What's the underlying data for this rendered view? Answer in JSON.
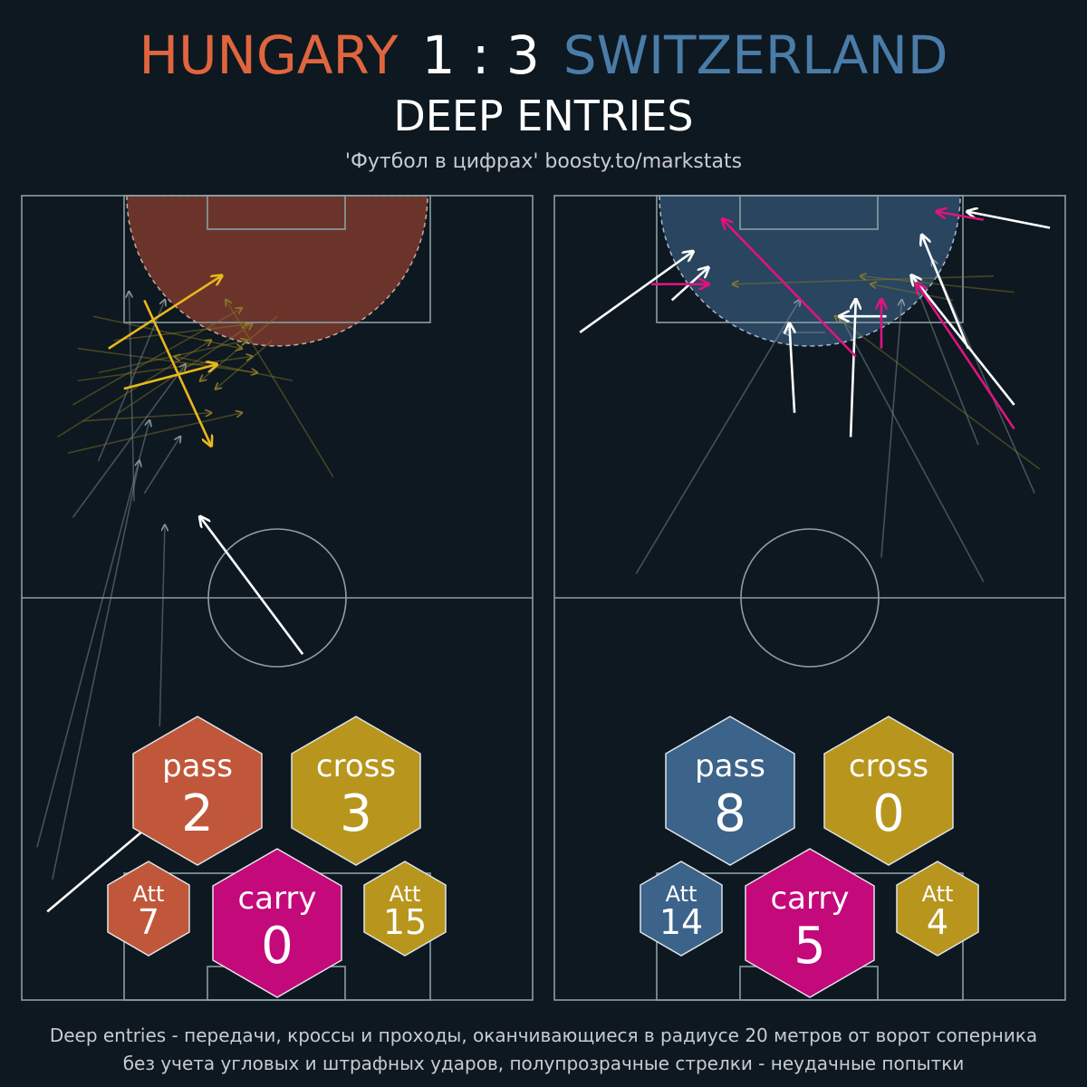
{
  "header": {
    "home_team": "HUNGARY",
    "score": "1 : 3",
    "away_team": "SWITZERLAND",
    "title": "DEEP ENTRIES",
    "credit": "'Футбол в цифрах' boosty.to/markstats"
  },
  "colors": {
    "home": "#c0573b",
    "away": "#3c6389",
    "cross": "#b8961d",
    "carry": "#c4097a",
    "home_zone": "#7a3a2e",
    "away_zone": "#2c4a67",
    "success_pass": "#ffffff",
    "success_cross": "#e8b81c",
    "success_carry": "#e0137f",
    "fail": "#8a98a0"
  },
  "footer": {
    "line1": "Deep entries - передачи, кроссы и проходы, оканчивающиеся в радиусе 20 метров от ворот соперника",
    "line2": "без учета угловых и штрафных ударов, полупрозрачные стрелки - неудачные попытки"
  },
  "chart_data": [
    {
      "type": "pitch-map",
      "team": "HUNGARY",
      "stats": {
        "pass_label": "pass",
        "pass": "2",
        "cross_label": "cross",
        "cross": "3",
        "carry_label": "carry",
        "carry": "0",
        "pass_att_label": "Att",
        "pass_att": "7",
        "cross_att_label": "Att",
        "cross_att": "15"
      },
      "arrows": [
        {
          "kind": "pass",
          "ok": true,
          "from": [
            5,
            11
          ],
          "to": [
            33,
            26
          ]
        },
        {
          "kind": "pass",
          "ok": true,
          "from": [
            55,
            43
          ],
          "to": [
            35,
            60
          ]
        },
        {
          "kind": "cross",
          "ok": true,
          "from": [
            24,
            87
          ],
          "to": [
            37,
            69
          ]
        },
        {
          "kind": "cross",
          "ok": true,
          "from": [
            20,
            76
          ],
          "to": [
            38,
            79
          ]
        },
        {
          "kind": "cross",
          "ok": true,
          "from": [
            17,
            81
          ],
          "to": [
            39,
            90
          ]
        },
        {
          "kind": "pass",
          "ok": false,
          "from": [
            6,
            15
          ],
          "to": [
            23,
            67
          ]
        },
        {
          "kind": "pass",
          "ok": false,
          "from": [
            3,
            19
          ],
          "to": [
            25,
            72
          ]
        },
        {
          "kind": "pass",
          "ok": false,
          "from": [
            27,
            34
          ],
          "to": [
            28,
            59
          ]
        },
        {
          "kind": "pass",
          "ok": false,
          "from": [
            24,
            63
          ],
          "to": [
            31,
            70
          ]
        },
        {
          "kind": "pass",
          "ok": false,
          "from": [
            10,
            60
          ],
          "to": [
            32,
            79
          ]
        },
        {
          "kind": "pass",
          "ok": false,
          "from": [
            22,
            62
          ],
          "to": [
            21,
            88
          ]
        },
        {
          "kind": "pass",
          "ok": false,
          "from": [
            15,
            67
          ],
          "to": [
            28,
            87
          ]
        },
        {
          "kind": "cross",
          "ok": false,
          "from": [
            7,
            70
          ],
          "to": [
            37,
            82
          ]
        },
        {
          "kind": "cross",
          "ok": false,
          "from": [
            9,
            68
          ],
          "to": [
            43,
            73
          ]
        },
        {
          "kind": "cross",
          "ok": false,
          "from": [
            12,
            72
          ],
          "to": [
            37,
            73
          ]
        },
        {
          "kind": "cross",
          "ok": false,
          "from": [
            15,
            78
          ],
          "to": [
            44,
            82
          ]
        },
        {
          "kind": "cross",
          "ok": false,
          "from": [
            14,
            85
          ],
          "to": [
            43,
            81
          ]
        },
        {
          "kind": "cross",
          "ok": false,
          "from": [
            18,
            82
          ],
          "to": [
            44,
            84
          ]
        },
        {
          "kind": "cross",
          "ok": false,
          "from": [
            11,
            77
          ],
          "to": [
            45,
            80
          ]
        },
        {
          "kind": "cross",
          "ok": false,
          "from": [
            11,
            81
          ],
          "to": [
            46,
            78
          ]
        },
        {
          "kind": "cross",
          "ok": false,
          "from": [
            10,
            74
          ],
          "to": [
            43,
            86
          ]
        },
        {
          "kind": "cross",
          "ok": false,
          "from": [
            19,
            73
          ],
          "to": [
            45,
            84
          ]
        },
        {
          "kind": "cross",
          "ok": false,
          "from": [
            50,
            85
          ],
          "to": [
            35,
            77
          ]
        },
        {
          "kind": "cross",
          "ok": false,
          "from": [
            53,
            77
          ],
          "to": [
            30,
            80
          ]
        },
        {
          "kind": "cross",
          "ok": false,
          "from": [
            61,
            65
          ],
          "to": [
            40,
            87
          ]
        },
        {
          "kind": "cross",
          "ok": false,
          "from": [
            49,
            82
          ],
          "to": [
            38,
            76
          ]
        }
      ]
    },
    {
      "type": "pitch-map",
      "team": "SWITZERLAND",
      "stats": {
        "pass_label": "pass",
        "pass": "8",
        "cross_label": "cross",
        "cross": "0",
        "carry_label": "carry",
        "carry": "5",
        "pass_att_label": "Att",
        "pass_att": "14",
        "cross_att_label": "Att",
        "cross_att": "4"
      },
      "arrows": [
        {
          "kind": "pass",
          "ok": true,
          "from": [
            5,
            83
          ],
          "to": [
            27,
            93
          ]
        },
        {
          "kind": "pass",
          "ok": true,
          "from": [
            23,
            87
          ],
          "to": [
            30,
            91
          ]
        },
        {
          "kind": "pass",
          "ok": true,
          "from": [
            47,
            73
          ],
          "to": [
            46,
            84
          ]
        },
        {
          "kind": "pass",
          "ok": true,
          "from": [
            58,
            70
          ],
          "to": [
            59,
            87
          ]
        },
        {
          "kind": "pass",
          "ok": true,
          "from": [
            65,
            85
          ],
          "to": [
            56,
            85
          ]
        },
        {
          "kind": "pass",
          "ok": true,
          "from": [
            81,
            81
          ],
          "to": [
            72,
            95
          ]
        },
        {
          "kind": "pass",
          "ok": true,
          "from": [
            97,
            96
          ],
          "to": [
            81,
            98
          ]
        },
        {
          "kind": "pass",
          "ok": true,
          "from": [
            90,
            74
          ],
          "to": [
            70,
            90
          ]
        },
        {
          "kind": "carry",
          "ok": true,
          "from": [
            19,
            89
          ],
          "to": [
            30,
            89
          ]
        },
        {
          "kind": "carry",
          "ok": true,
          "from": [
            59,
            80
          ],
          "to": [
            33,
            97
          ]
        },
        {
          "kind": "carry",
          "ok": true,
          "from": [
            64,
            81
          ],
          "to": [
            64,
            87
          ]
        },
        {
          "kind": "carry",
          "ok": true,
          "from": [
            90,
            71
          ],
          "to": [
            71,
            89
          ]
        },
        {
          "kind": "carry",
          "ok": true,
          "from": [
            84,
            97
          ],
          "to": [
            75,
            98
          ]
        },
        {
          "kind": "pass",
          "ok": false,
          "from": [
            16,
            53
          ],
          "to": [
            48,
            87
          ]
        },
        {
          "kind": "pass",
          "ok": false,
          "from": [
            64,
            55
          ],
          "to": [
            68,
            87
          ]
        },
        {
          "kind": "pass",
          "ok": false,
          "from": [
            84,
            52
          ],
          "to": [
            56,
            85
          ]
        },
        {
          "kind": "pass",
          "ok": false,
          "from": [
            83,
            69
          ],
          "to": [
            70,
            90
          ]
        },
        {
          "kind": "pass",
          "ok": false,
          "from": [
            94,
            63
          ],
          "to": [
            74,
            92
          ]
        },
        {
          "kind": "pass",
          "ok": false,
          "from": [
            53,
            83
          ],
          "to": [
            45,
            83
          ]
        },
        {
          "kind": "cross",
          "ok": false,
          "from": [
            86,
            90
          ],
          "to": [
            35,
            89
          ]
        },
        {
          "kind": "cross",
          "ok": false,
          "from": [
            90,
            88
          ],
          "to": [
            60,
            90
          ]
        },
        {
          "kind": "cross",
          "ok": false,
          "from": [
            95,
            66
          ],
          "to": [
            55,
            85
          ]
        },
        {
          "kind": "cross",
          "ok": false,
          "from": [
            78,
            87
          ],
          "to": [
            62,
            89
          ]
        }
      ]
    }
  ]
}
